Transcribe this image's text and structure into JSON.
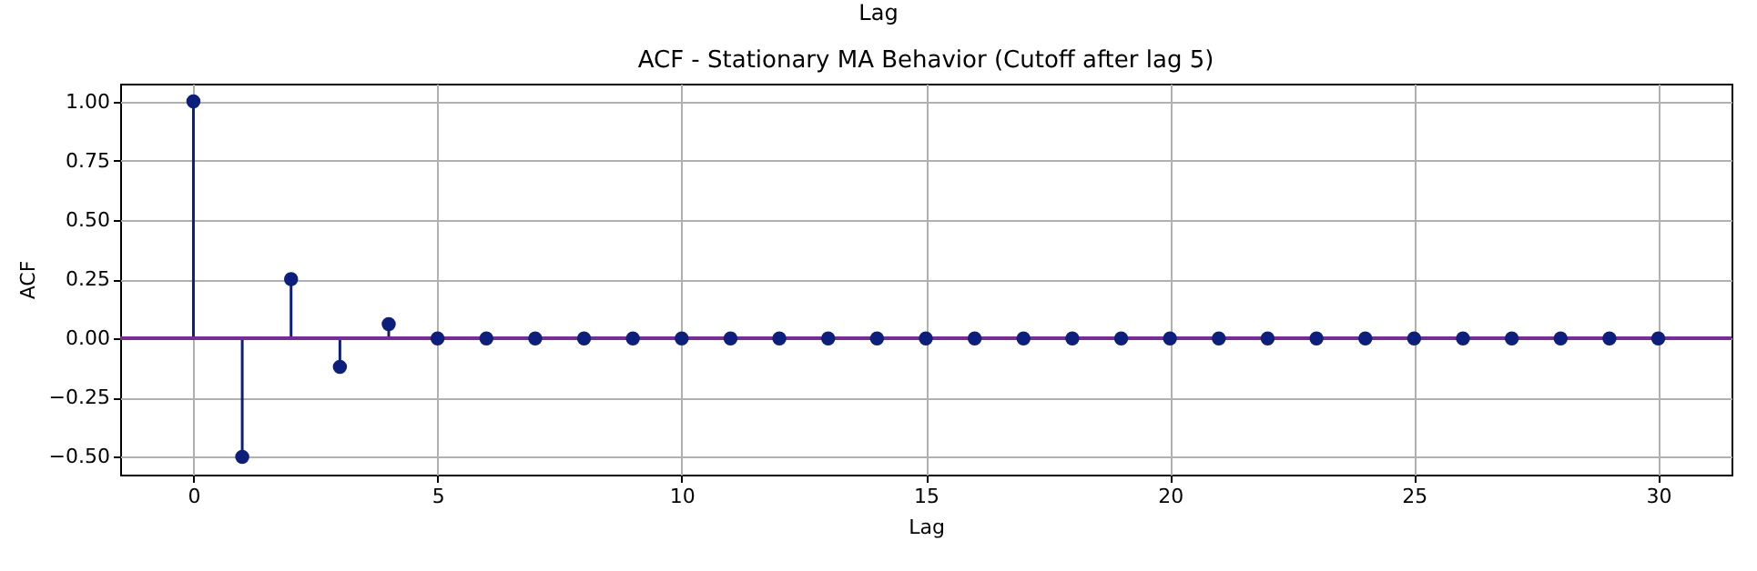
{
  "chart_data": {
    "type": "lollipop",
    "title": "ACF - Stationary MA Behavior (Cutoff after lag 5)",
    "xlabel": "Lag",
    "ylabel": "ACF",
    "annotations": [
      "Lag"
    ],
    "x": [
      0,
      1,
      2,
      3,
      4,
      5,
      6,
      7,
      8,
      9,
      10,
      11,
      12,
      13,
      14,
      15,
      16,
      17,
      18,
      19,
      20,
      21,
      22,
      23,
      24,
      25,
      26,
      27,
      28,
      29,
      30
    ],
    "values": [
      1,
      -0.5,
      0.25,
      -0.12,
      0.06,
      0,
      0,
      0,
      0,
      0,
      0,
      0,
      0,
      0,
      0,
      0,
      0,
      0,
      0,
      0,
      0,
      0,
      0,
      0,
      0,
      0,
      0,
      0,
      0,
      0,
      0
    ],
    "color": "#0d1f7d",
    "marker": "circle",
    "xlim": [
      -1.5,
      31.5
    ],
    "xticks": [
      0,
      5,
      10,
      15,
      20,
      25,
      30
    ],
    "ylim": [
      -0.575,
      1.075
    ],
    "yticks": [
      {
        "value": -0.5,
        "label": "−0.50"
      },
      {
        "value": -0.25,
        "label": "−0.25"
      },
      {
        "value": 0,
        "label": "0.00"
      },
      {
        "value": 0.25,
        "label": "0.25"
      },
      {
        "value": 0.5,
        "label": "0.50"
      },
      {
        "value": 0.75,
        "label": "0.75"
      },
      {
        "value": 1,
        "label": "1.00"
      }
    ],
    "ref_lines": [
      {
        "axis": "y",
        "value": 0,
        "color": "#7b2a9c"
      }
    ],
    "grid": true
  }
}
